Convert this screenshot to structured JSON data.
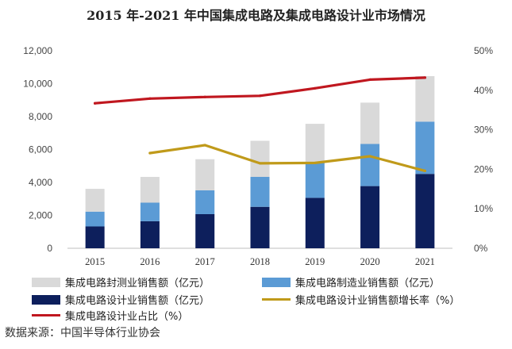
{
  "chart_data": {
    "type": "bar",
    "title": "2015 年-2021 年中国集成电路及集成电路设计业市场情况",
    "categories": [
      "2015",
      "2016",
      "2017",
      "2018",
      "2019",
      "2020",
      "2021"
    ],
    "ylim_left": [
      0,
      12000
    ],
    "ylim_right": [
      0,
      50
    ],
    "left_ticks": [
      "0",
      "2,000",
      "4,000",
      "6,000",
      "8,000",
      "10,000",
      "12,000"
    ],
    "right_ticks": [
      "0%",
      "10%",
      "20%",
      "30%",
      "40%",
      "50%"
    ],
    "series": [
      {
        "name": "集成电路封测业销售额（亿元）",
        "kind": "stacked-bar",
        "values": [
          1384,
          1564,
          1889,
          2194,
          2350,
          2510,
          2763
        ],
        "color": "#d9d9d9"
      },
      {
        "name": "集成电路制造业销售额（亿元）",
        "kind": "stacked-bar",
        "values": [
          901,
          1127,
          1448,
          1818,
          2149,
          2560,
          3176
        ],
        "color": "#5b9bd5"
      },
      {
        "name": "集成电路设计业销售额（亿元）",
        "kind": "stacked-bar",
        "values": [
          1325,
          1644,
          2073,
          2519,
          3064,
          3778,
          4519
        ],
        "color": "#0d1f5c"
      },
      {
        "name": "集成电路设计业销售额增长率（%）",
        "kind": "line",
        "axis": "right",
        "values": [
          null,
          24.1,
          26.1,
          21.5,
          21.6,
          23.3,
          19.6
        ],
        "color": "#c09a1a"
      },
      {
        "name": "集成电路设计业占比（%）",
        "kind": "line",
        "axis": "right",
        "values": [
          36.7,
          37.9,
          38.3,
          38.6,
          40.5,
          42.7,
          43.2
        ],
        "color": "#c0171f"
      }
    ]
  },
  "source": "数据来源：中国半导体行业协会"
}
